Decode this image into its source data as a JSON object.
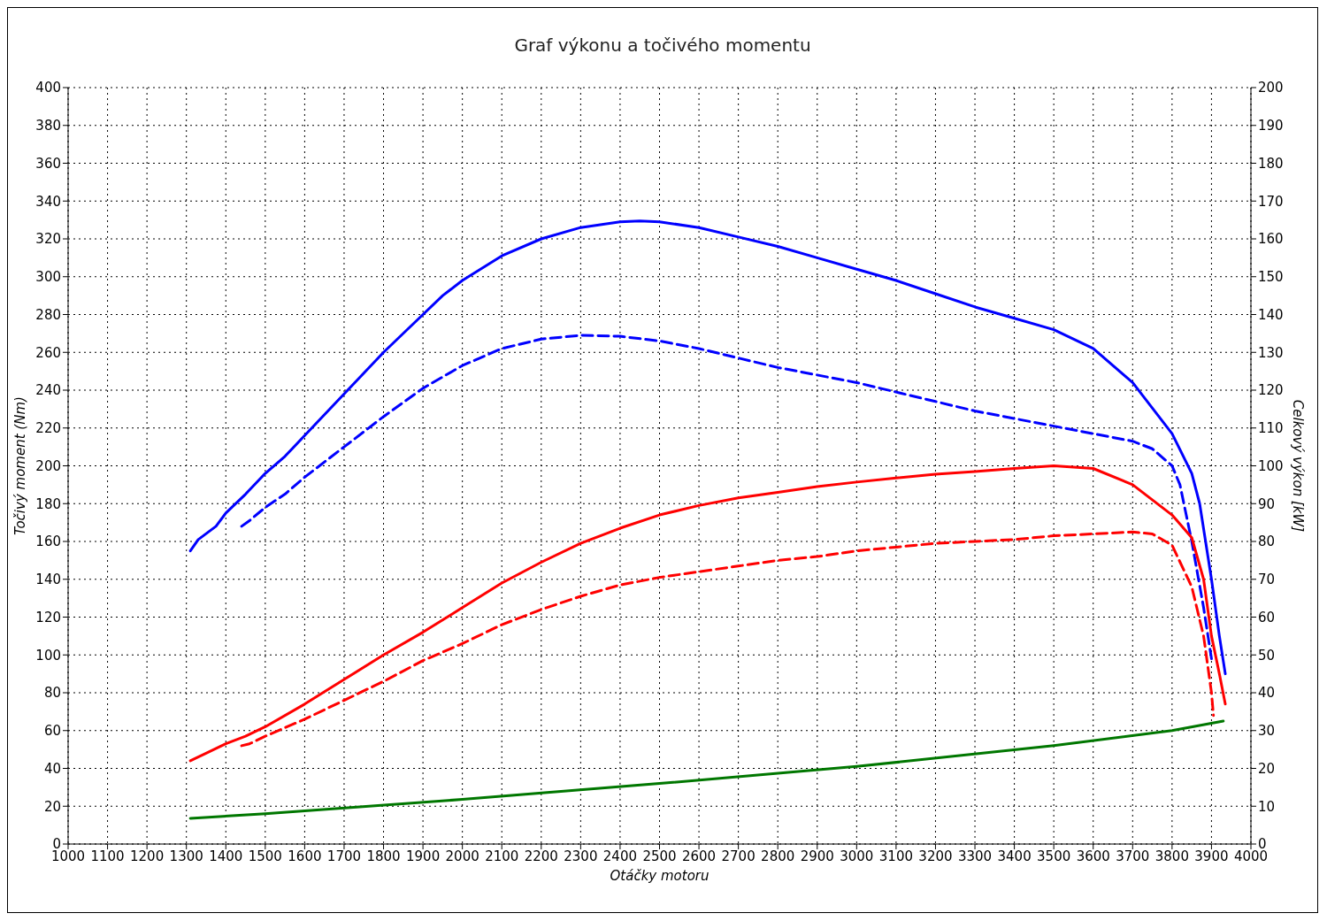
{
  "chart_data": {
    "type": "line",
    "title": "Graf výkonu a točivého momentu",
    "xlabel": "Otáčky motoru",
    "ylabel": "Točivý moment (Nm)",
    "y2label": "Celkový výkon [kW]",
    "xlim": [
      1000,
      4000
    ],
    "xticks": [
      1000,
      1100,
      1200,
      1300,
      1400,
      1500,
      1600,
      1700,
      1800,
      1900,
      2000,
      2100,
      2200,
      2300,
      2400,
      2500,
      2600,
      2700,
      2800,
      2900,
      3000,
      3100,
      3200,
      3300,
      3400,
      3500,
      3600,
      3700,
      3800,
      3900,
      4000
    ],
    "ylim": [
      0,
      400
    ],
    "yticks": [
      0,
      20,
      40,
      60,
      80,
      100,
      120,
      140,
      160,
      180,
      200,
      220,
      240,
      260,
      280,
      300,
      320,
      340,
      360,
      380,
      400
    ],
    "y2lim": [
      0,
      200
    ],
    "y2ticks": [
      0,
      10,
      20,
      30,
      40,
      50,
      60,
      70,
      80,
      90,
      100,
      110,
      120,
      130,
      140,
      150,
      160,
      170,
      180,
      190,
      200
    ],
    "grid": true,
    "marker": "none",
    "series": [
      {
        "color": "#0000ff",
        "line_style": "solid",
        "x": [
          1310,
          1330,
          1375,
          1400,
          1450,
          1500,
          1550,
          1600,
          1700,
          1800,
          1900,
          1950,
          2000,
          2100,
          2200,
          2300,
          2400,
          2450,
          2500,
          2600,
          2700,
          2800,
          2900,
          3000,
          3100,
          3200,
          3300,
          3400,
          3500,
          3600,
          3700,
          3800,
          3850,
          3870,
          3900,
          3920,
          3935
        ],
        "values": [
          155,
          161,
          168,
          175,
          185,
          196,
          205,
          216,
          238,
          260,
          280,
          290,
          298,
          311,
          320,
          326,
          329,
          329.5,
          329,
          326,
          321,
          316,
          310,
          304,
          298,
          291,
          284,
          278,
          272,
          262,
          244,
          217,
          196,
          180,
          140,
          110,
          90
        ]
      },
      {
        "color": "#0000ff",
        "line_style": "dashed",
        "x": [
          1440,
          1460,
          1500,
          1550,
          1600,
          1700,
          1800,
          1900,
          2000,
          2100,
          2200,
          2300,
          2400,
          2500,
          2600,
          2700,
          2800,
          2900,
          3000,
          3100,
          3200,
          3300,
          3400,
          3500,
          3600,
          3700,
          3750,
          3800,
          3820,
          3850,
          3880,
          3900
        ],
        "values": [
          168,
          171,
          178,
          185,
          194,
          210,
          226,
          241,
          253,
          262,
          267,
          269,
          268.5,
          266,
          262,
          257,
          252,
          248,
          244,
          239,
          234,
          229,
          225,
          221,
          217,
          213,
          209,
          200,
          190,
          160,
          125,
          98
        ]
      },
      {
        "color": "#ff0000",
        "line_style": "solid",
        "axis": "y2",
        "x": [
          1310,
          1350,
          1400,
          1450,
          1500,
          1600,
          1700,
          1800,
          1900,
          2000,
          2100,
          2200,
          2300,
          2400,
          2500,
          2600,
          2700,
          2800,
          2900,
          3000,
          3100,
          3200,
          3300,
          3400,
          3500,
          3600,
          3700,
          3800,
          3850,
          3880,
          3900,
          3920,
          3935
        ],
        "values": [
          22,
          24,
          26.5,
          28.5,
          31,
          37,
          43.5,
          50,
          56,
          62.5,
          69,
          74.5,
          79.5,
          83.5,
          87,
          89.5,
          91.5,
          93,
          94.5,
          95.7,
          96.8,
          97.8,
          98.5,
          99.3,
          100,
          99.3,
          95,
          87,
          81,
          70,
          55,
          45,
          37
        ]
      },
      {
        "color": "#ff0000",
        "line_style": "dashed",
        "axis": "y2",
        "x": [
          1440,
          1460,
          1500,
          1600,
          1700,
          1800,
          1900,
          2000,
          2100,
          2200,
          2300,
          2400,
          2500,
          2600,
          2700,
          2800,
          2900,
          3000,
          3100,
          3200,
          3300,
          3400,
          3500,
          3600,
          3700,
          3750,
          3800,
          3850,
          3880,
          3900,
          3905
        ],
        "values": [
          26,
          26.5,
          28.5,
          33,
          38,
          43,
          48.5,
          53,
          58,
          62,
          65.5,
          68.5,
          70.5,
          72,
          73.5,
          75,
          76,
          77.5,
          78.5,
          79.5,
          80,
          80.5,
          81.5,
          82,
          82.5,
          82,
          79,
          68,
          55,
          40,
          34
        ]
      },
      {
        "color": "#007700",
        "line_style": "solid",
        "axis": "y2",
        "x": [
          1310,
          1500,
          2000,
          2500,
          3000,
          3500,
          3800,
          3930
        ],
        "values": [
          6.8,
          8,
          11.8,
          16,
          20.5,
          26,
          30,
          32.5
        ]
      }
    ]
  }
}
